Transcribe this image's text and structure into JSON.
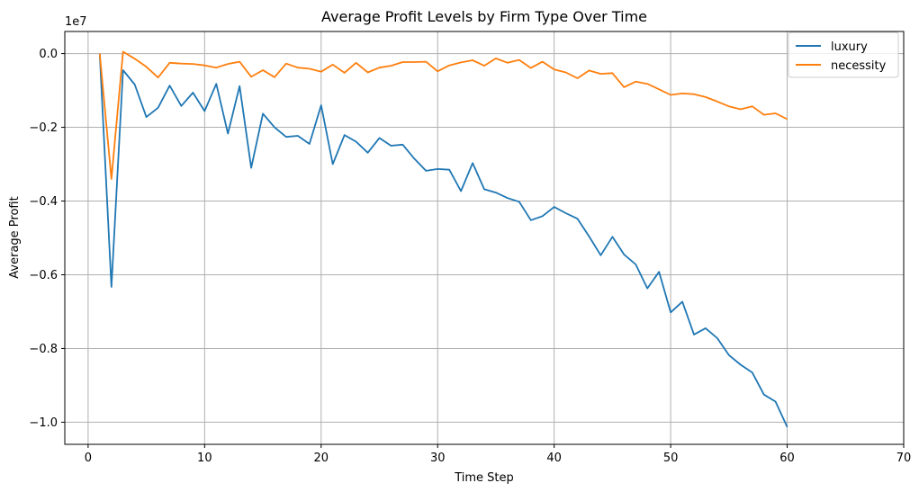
{
  "chart_data": {
    "type": "line",
    "title": "Average Profit Levels by Firm Type Over Time",
    "xlabel": "Time Step",
    "ylabel": "Average Profit",
    "y_scale_label": "1e7",
    "xlim": [
      -2,
      70
    ],
    "ylim": [
      -10.6,
      0.6
    ],
    "x_ticks": [
      0,
      10,
      20,
      30,
      40,
      50,
      60,
      70
    ],
    "y_ticks": [
      0.0,
      -0.2,
      -0.4,
      -0.6,
      -0.8,
      -1.0
    ],
    "y_tick_labels": [
      "0.0",
      "−0.2",
      "−0.4",
      "−0.6",
      "−0.8",
      "−1.0"
    ],
    "grid": true,
    "legend_position": "top-right",
    "x": [
      1,
      2,
      3,
      4,
      5,
      6,
      7,
      8,
      9,
      10,
      11,
      12,
      13,
      14,
      15,
      16,
      17,
      18,
      19,
      20,
      21,
      22,
      23,
      24,
      25,
      26,
      27,
      28,
      29,
      30,
      31,
      32,
      33,
      34,
      35,
      36,
      37,
      38,
      39,
      40,
      41,
      42,
      43,
      44,
      45,
      46,
      47,
      48,
      49,
      50,
      51,
      52,
      53,
      54,
      55,
      56,
      57,
      58,
      59,
      60
    ],
    "series": [
      {
        "name": "luxury",
        "color": "#1f77b4",
        "values": [
          0.0,
          -6.33,
          -0.45,
          -0.84,
          -1.72,
          -1.47,
          -0.87,
          -1.42,
          -1.06,
          -1.56,
          -0.82,
          -2.17,
          -0.88,
          -3.1,
          -1.63,
          -2.0,
          -2.26,
          -2.23,
          -2.45,
          -1.4,
          -3.0,
          -2.21,
          -2.39,
          -2.69,
          -2.29,
          -2.5,
          -2.47,
          -2.85,
          -3.18,
          -3.13,
          -3.15,
          -3.73,
          -2.97,
          -3.68,
          -3.77,
          -3.92,
          -4.02,
          -4.52,
          -4.41,
          -4.16,
          -4.33,
          -4.48,
          -4.96,
          -5.47,
          -4.97,
          -5.45,
          -5.72,
          -6.37,
          -5.92,
          -7.02,
          -6.73,
          -7.62,
          -7.45,
          -7.72,
          -8.18,
          -8.44,
          -8.65,
          -9.25,
          -9.44,
          -10.13
        ]
      },
      {
        "name": "necessity",
        "color": "#ff7f0e",
        "values": [
          0.0,
          -3.4,
          0.05,
          -0.14,
          -0.36,
          -0.65,
          -0.25,
          -0.27,
          -0.28,
          -0.32,
          -0.38,
          -0.28,
          -0.22,
          -0.63,
          -0.45,
          -0.64,
          -0.27,
          -0.38,
          -0.41,
          -0.49,
          -0.3,
          -0.52,
          -0.25,
          -0.51,
          -0.38,
          -0.33,
          -0.23,
          -0.23,
          -0.22,
          -0.48,
          -0.32,
          -0.24,
          -0.18,
          -0.33,
          -0.13,
          -0.25,
          -0.17,
          -0.39,
          -0.22,
          -0.43,
          -0.51,
          -0.67,
          -0.46,
          -0.55,
          -0.53,
          -0.91,
          -0.76,
          -0.82,
          -0.97,
          -1.12,
          -1.08,
          -1.1,
          -1.18,
          -1.3,
          -1.43,
          -1.51,
          -1.43,
          -1.66,
          -1.62,
          -1.78
        ]
      }
    ]
  }
}
